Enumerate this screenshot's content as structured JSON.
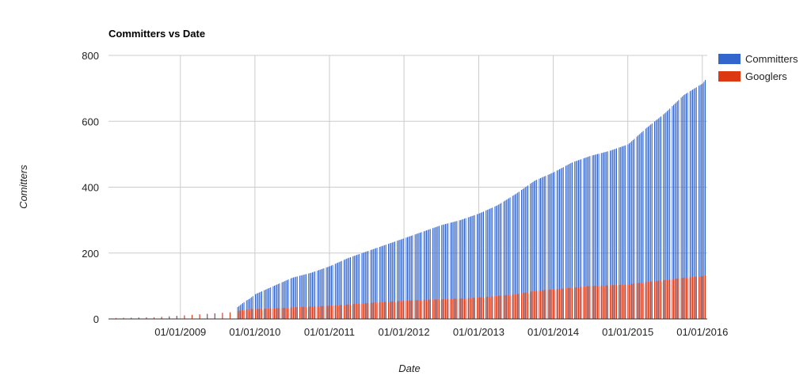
{
  "chart_data": {
    "type": "bar",
    "title": "Committers vs Date",
    "xlabel": "Date",
    "ylabel": "Comitters",
    "ylim": [
      0,
      800
    ],
    "yticks": [
      0,
      200,
      400,
      600,
      800
    ],
    "xlim": [
      "2008-01-15",
      "2016-01-25"
    ],
    "xticks": [
      "2009-01-01",
      "2010-01-01",
      "2011-01-01",
      "2012-01-01",
      "2013-01-01",
      "2014-01-01",
      "2015-01-01",
      "2016-01-01"
    ],
    "xtick_labels": [
      "01/01/2009",
      "01/01/2010",
      "01/01/2011",
      "01/01/2012",
      "01/01/2013",
      "01/01/2014",
      "01/01/2015",
      "01/01/2016"
    ],
    "grid": true,
    "legend_position": "right",
    "colors": {
      "Committers": "#3366cc",
      "Googlers": "#dc3912"
    },
    "series": [
      {
        "name": "Committers",
        "x": [
          "2008-01-15",
          "2008-06-01",
          "2008-09-01",
          "2009-01-01",
          "2009-05-01",
          "2009-09-01",
          "2009-10-15",
          "2009-11-15",
          "2009-12-01",
          "2010-01-01",
          "2010-04-01",
          "2010-07-01",
          "2010-10-01",
          "2011-01-01",
          "2011-04-01",
          "2011-07-01",
          "2011-10-01",
          "2012-01-01",
          "2012-04-01",
          "2012-07-01",
          "2012-10-01",
          "2013-01-01",
          "2013-04-01",
          "2013-07-01",
          "2013-10-01",
          "2014-01-01",
          "2014-04-01",
          "2014-07-01",
          "2014-10-01",
          "2015-01-01",
          "2015-04-01",
          "2015-07-01",
          "2015-10-01",
          "2016-01-01",
          "2016-01-25"
        ],
        "values": [
          2,
          4,
          5,
          10,
          15,
          20,
          40,
          55,
          60,
          75,
          100,
          125,
          140,
          160,
          185,
          205,
          225,
          245,
          265,
          285,
          300,
          320,
          345,
          380,
          420,
          445,
          475,
          495,
          510,
          530,
          580,
          625,
          680,
          715,
          735
        ]
      },
      {
        "name": "Googlers",
        "x": [
          "2008-01-15",
          "2008-06-01",
          "2008-09-01",
          "2009-01-01",
          "2009-05-01",
          "2009-09-01",
          "2009-10-15",
          "2009-11-15",
          "2009-12-01",
          "2010-01-01",
          "2010-04-01",
          "2010-07-01",
          "2010-10-01",
          "2011-01-01",
          "2011-04-01",
          "2011-07-01",
          "2011-10-01",
          "2012-01-01",
          "2012-04-01",
          "2012-07-01",
          "2012-10-01",
          "2013-01-01",
          "2013-04-01",
          "2013-07-01",
          "2013-10-01",
          "2014-01-01",
          "2014-04-01",
          "2014-07-01",
          "2014-10-01",
          "2015-01-01",
          "2015-04-01",
          "2015-07-01",
          "2015-10-01",
          "2016-01-01",
          "2016-01-25"
        ],
        "values": [
          2,
          4,
          5,
          10,
          15,
          20,
          25,
          28,
          30,
          30,
          32,
          35,
          38,
          40,
          44,
          48,
          52,
          55,
          58,
          60,
          62,
          65,
          70,
          75,
          85,
          90,
          95,
          100,
          102,
          105,
          112,
          118,
          125,
          130,
          135
        ]
      }
    ]
  }
}
